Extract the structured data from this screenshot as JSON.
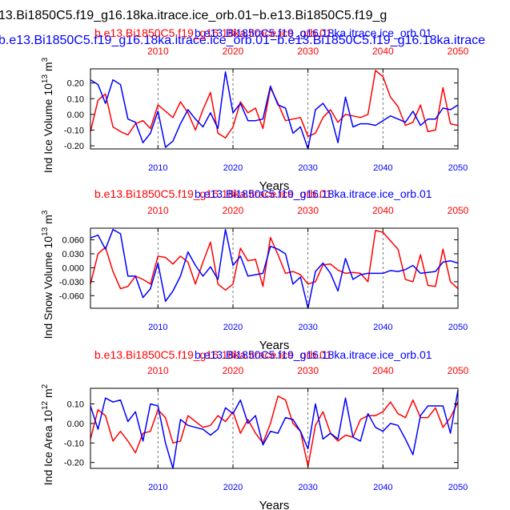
{
  "figure": {
    "main_title": "13.Bi1850C5.f19_g16.18ka.itrace.ice_orb.01−b.e13.Bi1850C5.f19_g",
    "main_subtitle_behind": "b.e13.Bi1850C5.f19_g16.18ka.itrace.ice_orb.01−b.e13.Bi1850C5.f19_g16.18ka.itrace"
  },
  "colors": {
    "red_series": "#ff0000",
    "blue_series": "#0000ff",
    "axis": "#000000",
    "grid": "#555555"
  },
  "chart_data": [
    {
      "type": "line",
      "title_red": "b.e13.Bi1850C5.f19_g16.18ka.itrace.ice_orb.01",
      "title_blue": "b.e13.Bi1850C5.f19_g16.18ka.itrace.ice_orb.01",
      "title": "b.e13.Bi1850C5.f19_g16.18ka.itrace.ice_orb.01",
      "ylabel_text": "Ind Ice Volume 10",
      "ylabel_exp": "13",
      "ylabel_unit": " m",
      "ylabel_unit_exp": "3",
      "xlabel": "Years",
      "xlim": [
        2001,
        2050
      ],
      "ylim": [
        -0.22,
        0.29
      ],
      "yticks": [
        0.2,
        0.1,
        0.0,
        -0.1,
        -0.2
      ],
      "yticklabels": [
        "0.20",
        "0.10",
        "0.00",
        "-0.10",
        "-0.20"
      ],
      "xticks": [
        2010,
        2020,
        2030,
        2040,
        2050
      ],
      "bottom_ticklabels": [
        "2010",
        "2020",
        "2030",
        "2040",
        "2050"
      ],
      "top_ticklabels": [
        "2010",
        "2020",
        "2030",
        "2040",
        "2050"
      ],
      "x": [
        2001,
        2002,
        2003,
        2004,
        2005,
        2006,
        2007,
        2008,
        2009,
        2010,
        2011,
        2012,
        2013,
        2014,
        2015,
        2016,
        2017,
        2018,
        2019,
        2020,
        2021,
        2022,
        2023,
        2024,
        2025,
        2026,
        2027,
        2028,
        2029,
        2030,
        2031,
        2032,
        2033,
        2034,
        2035,
        2036,
        2037,
        2038,
        2039,
        2040,
        2041,
        2042,
        2043,
        2044,
        2045,
        2046,
        2047,
        2048,
        2049,
        2050
      ],
      "series": [
        {
          "name": "red",
          "color": "#ff0000",
          "values": [
            -0.11,
            0.09,
            0.13,
            -0.08,
            -0.11,
            -0.13,
            -0.06,
            -0.04,
            -0.09,
            0.06,
            0.02,
            -0.02,
            0.08,
            0.01,
            -0.1,
            0.03,
            0.14,
            -0.12,
            -0.15,
            -0.08,
            0.08,
            0.01,
            0.04,
            -0.09,
            0.17,
            0.07,
            -0.04,
            -0.03,
            -0.02,
            -0.14,
            -0.12,
            -0.02,
            0.03,
            -0.05,
            0.0,
            -0.01,
            -0.02,
            0.0,
            0.28,
            0.24,
            0.11,
            0.05,
            -0.07,
            -0.05,
            0.06,
            -0.11,
            -0.1,
            0.17,
            -0.06,
            -0.07
          ]
        },
        {
          "name": "blue",
          "color": "#0000ff",
          "values": [
            0.22,
            0.19,
            0.07,
            0.22,
            0.19,
            -0.03,
            -0.05,
            -0.18,
            -0.12,
            0.02,
            -0.21,
            -0.17,
            -0.06,
            0.03,
            -0.03,
            -0.08,
            0.01,
            -0.09,
            0.27,
            0.01,
            0.07,
            -0.04,
            -0.04,
            -0.03,
            0.18,
            0.06,
            0.04,
            -0.12,
            -0.08,
            -0.22,
            0.03,
            0.07,
            0.0,
            -0.18,
            0.11,
            -0.08,
            -0.06,
            -0.06,
            -0.07,
            -0.04,
            -0.01,
            -0.03,
            -0.05,
            0.02,
            -0.07,
            -0.03,
            -0.03,
            0.04,
            0.03,
            0.06
          ]
        }
      ]
    },
    {
      "type": "line",
      "title_red": "b.e13.Bi1850C5.f19_g16.18ka.itrace.ice_orb.01",
      "title_blue": "b.e13.Bi1850C5.f19_g16.18ka.itrace.ice_orb.01",
      "title": "b.e13.Bi1850C5.f19_g16.18ka.itrace.ice_orb.01",
      "ylabel_text": "Ind Snow Volume 10",
      "ylabel_exp": "13",
      "ylabel_unit": " m",
      "ylabel_unit_exp": "3",
      "xlabel": "Years",
      "xlim": [
        2001,
        2050
      ],
      "ylim": [
        -0.087,
        0.085
      ],
      "yticks": [
        0.06,
        0.03,
        0.0,
        -0.03,
        -0.06
      ],
      "yticklabels": [
        "0.060",
        "0.030",
        "0.000",
        "-0.030",
        "-0.060"
      ],
      "xticks": [
        2010,
        2020,
        2030,
        2040,
        2050
      ],
      "bottom_ticklabels": [
        "2010",
        "2020",
        "2030",
        "2040",
        "2050"
      ],
      "top_ticklabels": [
        "2010",
        "2020",
        "2030",
        "2040",
        "2050"
      ],
      "x": [
        2001,
        2002,
        2003,
        2004,
        2005,
        2006,
        2007,
        2008,
        2009,
        2010,
        2011,
        2012,
        2013,
        2014,
        2015,
        2016,
        2017,
        2018,
        2019,
        2020,
        2021,
        2022,
        2023,
        2024,
        2025,
        2026,
        2027,
        2028,
        2029,
        2030,
        2031,
        2032,
        2033,
        2034,
        2035,
        2036,
        2037,
        2038,
        2039,
        2040,
        2041,
        2042,
        2043,
        2044,
        2045,
        2046,
        2047,
        2048,
        2049,
        2050
      ],
      "series": [
        {
          "name": "red",
          "color": "#ff0000",
          "values": [
            -0.035,
            0.03,
            0.044,
            -0.008,
            -0.045,
            -0.04,
            -0.018,
            -0.025,
            -0.035,
            0.025,
            0.022,
            0.008,
            0.025,
            0.012,
            -0.035,
            0.012,
            0.055,
            -0.035,
            -0.048,
            -0.035,
            0.042,
            0.015,
            0.018,
            -0.04,
            0.065,
            0.028,
            -0.012,
            -0.008,
            -0.015,
            -0.035,
            -0.03,
            0.006,
            0.008,
            -0.005,
            -0.012,
            -0.01,
            -0.012,
            -0.03,
            0.08,
            0.076,
            0.058,
            0.04,
            -0.025,
            -0.03,
            0.028,
            -0.038,
            -0.04,
            0.04,
            -0.03,
            -0.045
          ]
        },
        {
          "name": "blue",
          "color": "#0000ff",
          "values": [
            0.064,
            0.07,
            0.04,
            0.082,
            0.073,
            -0.018,
            -0.018,
            -0.064,
            -0.045,
            0.01,
            -0.072,
            -0.05,
            -0.018,
            0.034,
            0.005,
            -0.018,
            0.002,
            -0.025,
            0.082,
            0.005,
            0.025,
            -0.018,
            -0.015,
            -0.012,
            0.046,
            0.04,
            0.03,
            -0.035,
            -0.02,
            -0.087,
            -0.008,
            0.01,
            -0.012,
            -0.05,
            0.02,
            -0.025,
            -0.015,
            -0.012,
            -0.012,
            -0.012,
            -0.006,
            -0.008,
            -0.004,
            0.005,
            -0.012,
            -0.01,
            -0.008,
            0.012,
            0.015,
            0.01
          ]
        }
      ]
    },
    {
      "type": "line",
      "title_red": "b.e13.Bi1850C5.f19_g16.18ka.itrace.ice_orb.01",
      "title_blue": "b.e13.Bi1850C5.f19_g16.18ka.itrace.ice_orb.01",
      "title": "b.e13.Bi1850C5.f19_g16.18ka.itrace.ice_orb.01",
      "ylabel_text": "Ind Ice Area 10",
      "ylabel_exp": "12",
      "ylabel_unit": " m",
      "ylabel_unit_exp": "2",
      "xlabel": "Years",
      "xlim": [
        2001,
        2050
      ],
      "ylim": [
        -0.23,
        0.18
      ],
      "yticks": [
        0.1,
        0.0,
        -0.1,
        -0.2
      ],
      "yticklabels": [
        "0.10",
        "0.00",
        "-0.10",
        "-0.20"
      ],
      "xticks": [
        2010,
        2020,
        2030,
        2040,
        2050
      ],
      "bottom_ticklabels": [
        "2010",
        "2020",
        "2030",
        "2040",
        "2050"
      ],
      "top_ticklabels": [
        "2010",
        "2020",
        "2030",
        "2040",
        "2050"
      ],
      "x": [
        2001,
        2002,
        2003,
        2004,
        2005,
        2006,
        2007,
        2008,
        2009,
        2010,
        2011,
        2012,
        2013,
        2014,
        2015,
        2016,
        2017,
        2018,
        2019,
        2020,
        2021,
        2022,
        2023,
        2024,
        2025,
        2026,
        2027,
        2028,
        2029,
        2030,
        2031,
        2032,
        2033,
        2034,
        2035,
        2036,
        2037,
        2038,
        2039,
        2040,
        2041,
        2042,
        2043,
        2044,
        2045,
        2046,
        2047,
        2048,
        2049,
        2050
      ],
      "series": [
        {
          "name": "red",
          "color": "#ff0000",
          "values": [
            -0.08,
            0.07,
            0.04,
            -0.09,
            -0.04,
            -0.09,
            -0.15,
            -0.05,
            -0.04,
            0.07,
            0.03,
            -0.1,
            -0.09,
            0.04,
            0.01,
            -0.02,
            -0.01,
            0.04,
            0.01,
            0.06,
            -0.05,
            0.02,
            -0.05,
            -0.1,
            0.0,
            0.14,
            0.12,
            0.0,
            -0.04,
            -0.22,
            -0.01,
            0.06,
            -0.05,
            -0.09,
            -0.06,
            -0.07,
            0.02,
            0.04,
            0.04,
            0.06,
            0.11,
            0.05,
            0.03,
            0.12,
            0.03,
            0.03,
            0.08,
            -0.02,
            0.03,
            0.11
          ]
        },
        {
          "name": "blue",
          "color": "#0000ff",
          "values": [
            0.09,
            -0.03,
            0.13,
            0.11,
            0.12,
            0.01,
            0.06,
            -0.09,
            0.1,
            0.09,
            -0.1,
            -0.23,
            0.02,
            -0.01,
            -0.02,
            -0.03,
            -0.06,
            -0.03,
            0.08,
            0.05,
            0.12,
            0.0,
            0.04,
            -0.11,
            -0.04,
            -0.05,
            0.03,
            0.02,
            -0.04,
            -0.13,
            0.1,
            -0.08,
            -0.05,
            -0.08,
            0.13,
            -0.07,
            -0.09,
            0.05,
            -0.02,
            -0.04,
            0.0,
            -0.01,
            -0.08,
            -0.16,
            0.04,
            0.09,
            0.09,
            0.09,
            -0.05,
            0.17
          ]
        }
      ]
    }
  ]
}
